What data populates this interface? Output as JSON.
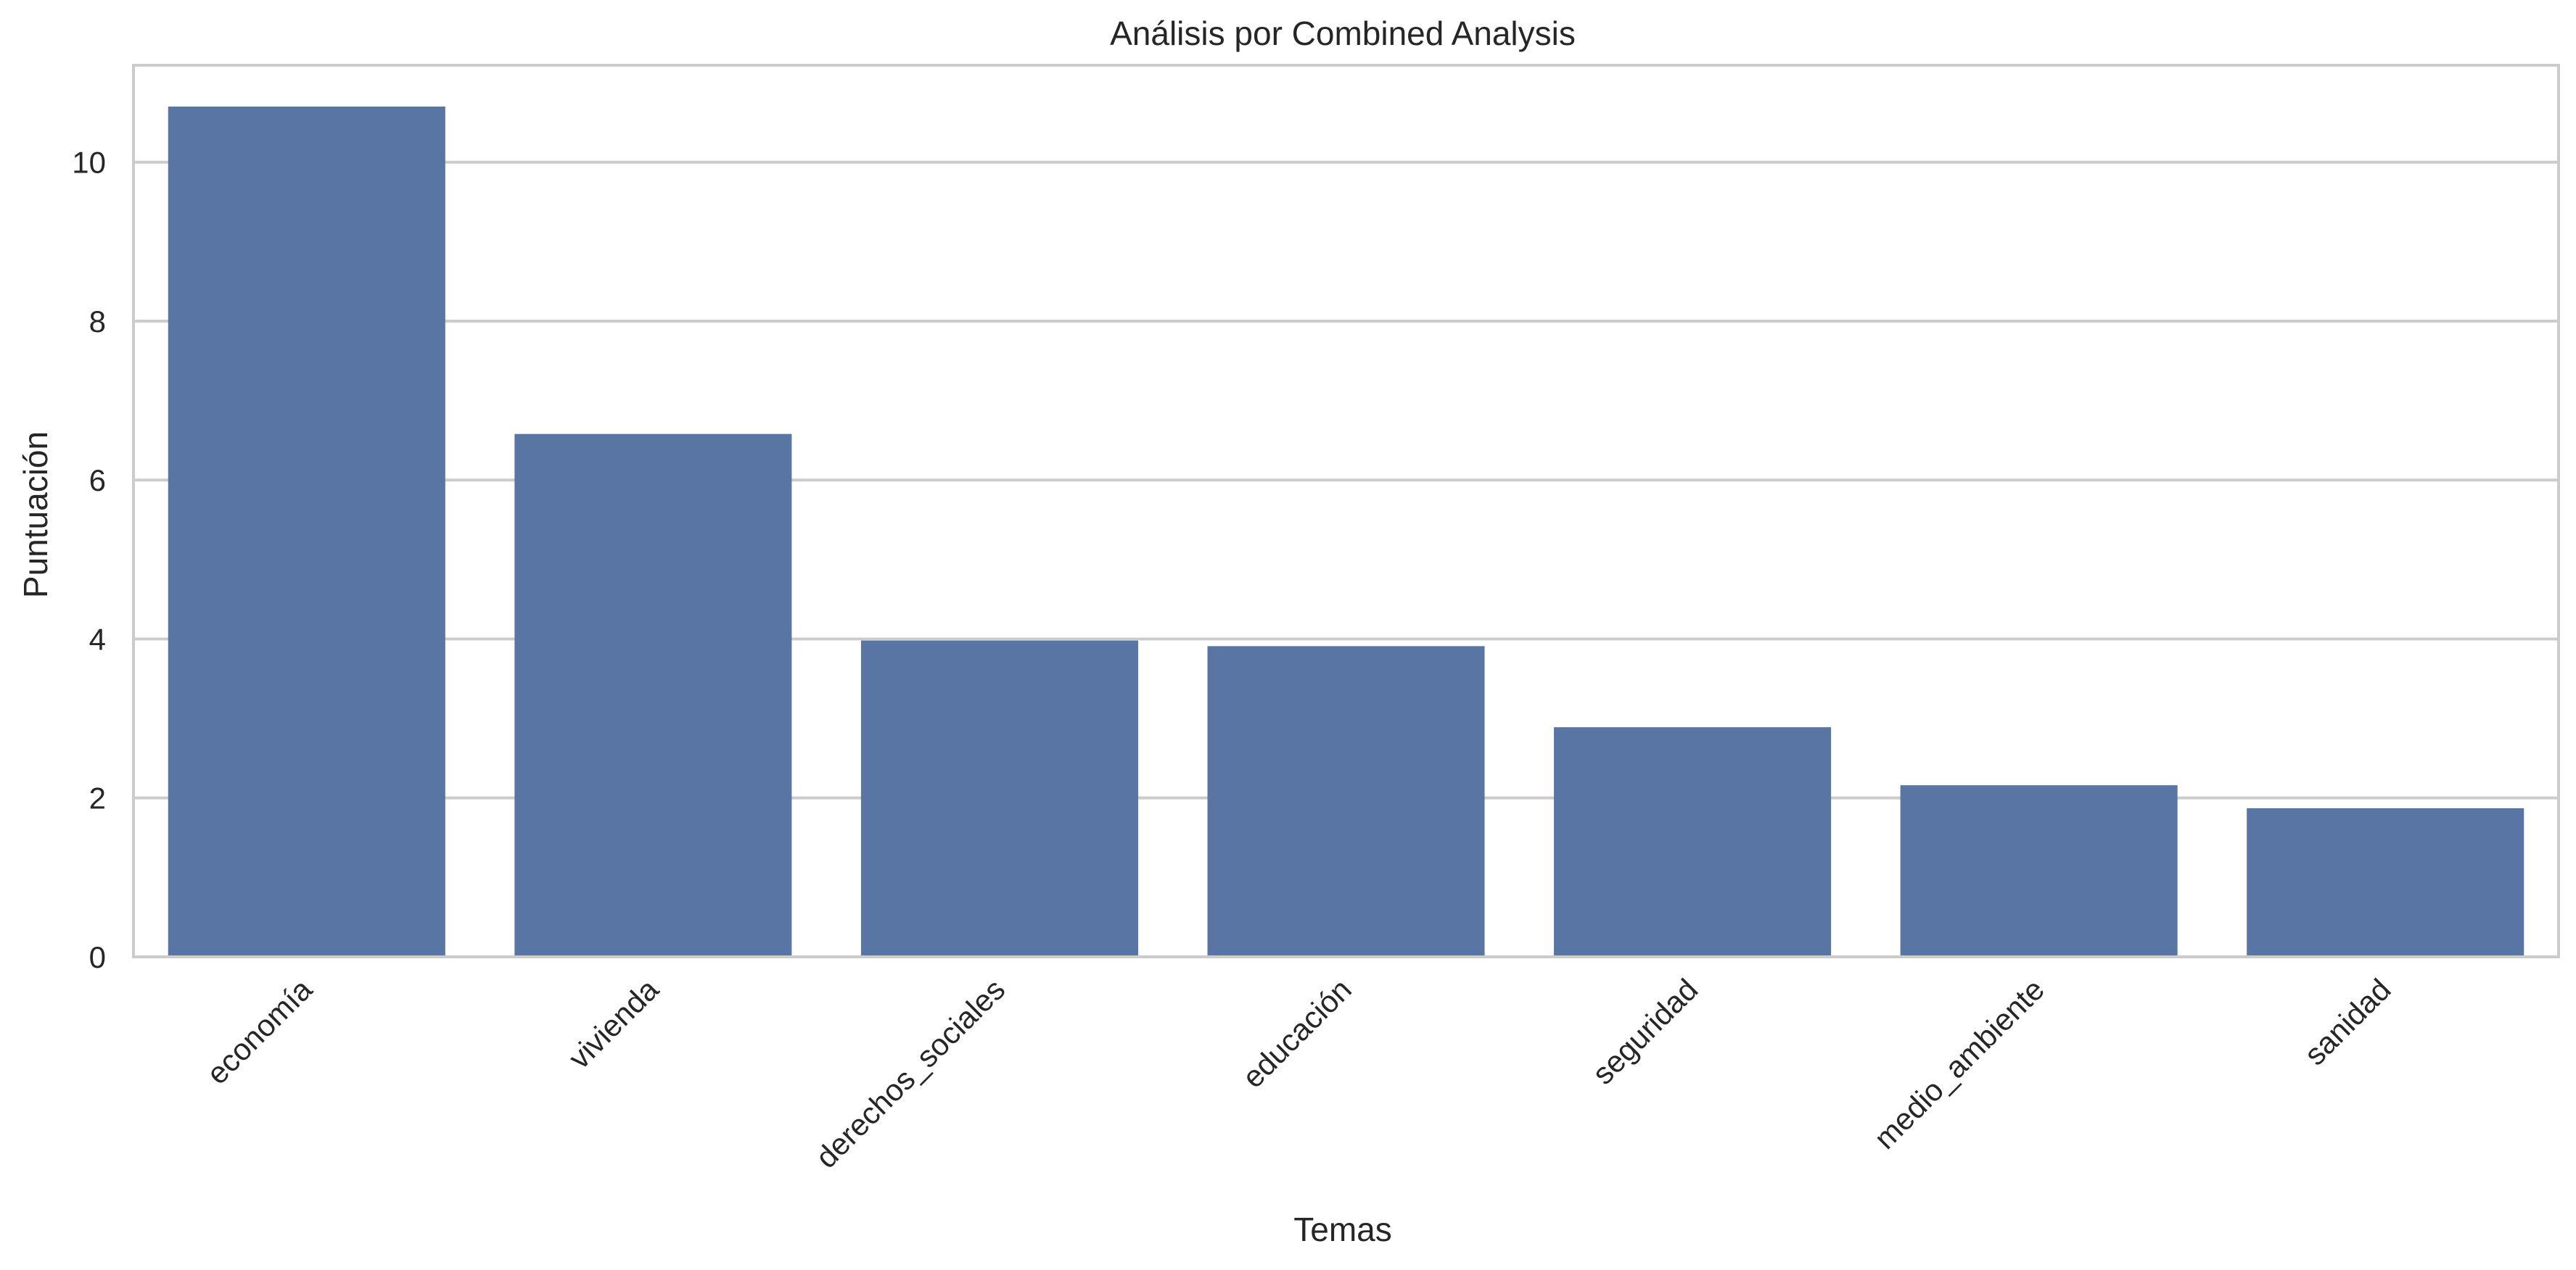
{
  "chart_data": {
    "type": "bar",
    "title": "Análisis por Combined Analysis",
    "xlabel": "Temas",
    "ylabel": "Puntuación",
    "categories": [
      "economía",
      "vivienda",
      "derechos_sociales",
      "educación",
      "seguridad",
      "medio_ambiente",
      "sanidad"
    ],
    "values": [
      10.7,
      6.58,
      3.98,
      3.91,
      2.89,
      2.16,
      1.87
    ],
    "ylim": [
      0,
      11.22
    ],
    "yticks": [
      0,
      2,
      4,
      6,
      8,
      10
    ],
    "grid": true,
    "grid_axis": "y",
    "bar_color": "#5975a4",
    "grid_color": "#cccccc",
    "frame_color": "#cccccc"
  }
}
